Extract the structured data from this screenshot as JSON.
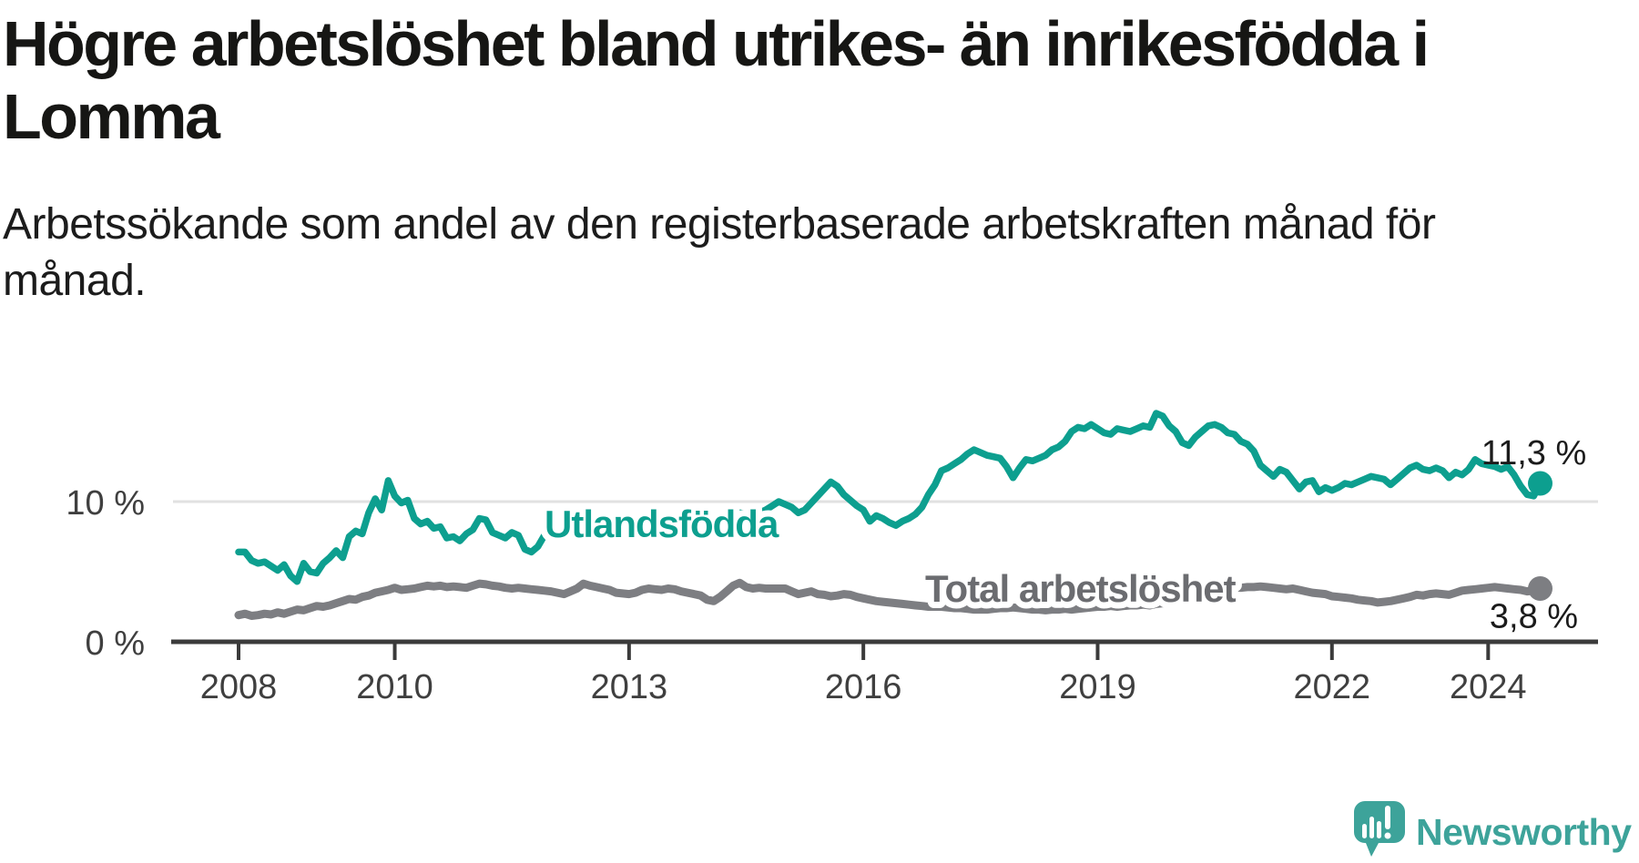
{
  "header": {
    "title_lines": [
      "Högre arbetslöshet bland utrikes- än inrikesfödda i",
      "Lomma"
    ],
    "subtitle_lines": [
      "Arbetssökande som andel av den registerbaserade arbetskraften månad för",
      "månad."
    ]
  },
  "branding": {
    "logo_text": "Newsworthy",
    "logo_icon": "newsworthy-speech-bubble-chart-icon",
    "logo_color": "#3da39a"
  },
  "colors": {
    "background": "#ffffff",
    "title_text": "#161614",
    "subtitle_text": "#1c1c1c",
    "axis_line": "#3b3b3b",
    "axis_label": "#3f3f3f",
    "gridline": "#e1e1e1",
    "value_label": "#1b1b1b",
    "series_foreign_born": "#0d9f8f",
    "series_total": "#7d7e82",
    "series_total_label": "#6b6c70",
    "label_halo": "#ffffff"
  },
  "chart_data": {
    "type": "line",
    "title": "Högre arbetslöshet bland utrikes- än inrikesfödda i Lomma",
    "subtitle": "Arbetssökande som andel av den registerbaserade arbetskraften månad för månad.",
    "unit": "%",
    "xlabel": "",
    "ylabel": "",
    "x_start_year": 2008,
    "x_start_month": 1,
    "x_frequency": "monthly",
    "x_end_year": 2024,
    "x_end_month": 9,
    "xlim": [
      2008,
      2024.75
    ],
    "ylim": [
      0,
      20
    ],
    "grid": "horizontal-10-only",
    "legend_position": "inline-labels",
    "x_ticks": [
      "2008",
      "2010",
      "2013",
      "2016",
      "2019",
      "2022",
      "2024"
    ],
    "y_ticks": [
      {
        "label": "0 %",
        "value": 0
      },
      {
        "label": "10 %",
        "value": 10
      }
    ],
    "series": [
      {
        "name": "Utlandsfödda",
        "color": "#0d9f8f",
        "end_label": "11,3 %",
        "end_value": 11.3,
        "values": [
          6.4,
          6.4,
          5.8,
          5.6,
          5.7,
          5.4,
          5.1,
          5.5,
          4.7,
          4.3,
          5.6,
          5.0,
          4.9,
          5.6,
          6.0,
          6.5,
          6.0,
          7.5,
          7.9,
          7.7,
          9.2,
          10.2,
          9.4,
          11.5,
          10.4,
          9.9,
          10.1,
          8.8,
          8.4,
          8.6,
          8.1,
          8.2,
          7.4,
          7.5,
          7.2,
          7.7,
          8.0,
          8.8,
          8.7,
          7.8,
          7.6,
          7.4,
          7.8,
          7.6,
          6.6,
          6.4,
          6.8,
          7.6,
          7.8,
          8.1,
          7.9,
          8.3,
          8.1,
          8.5,
          8.3,
          8.6,
          8.4,
          8.7,
          8.5,
          8.4,
          8.5,
          8.8,
          8.6,
          8.9,
          8.7,
          8.6,
          8.8,
          8.7,
          8.9,
          9.0,
          8.8,
          8.9,
          8.8,
          9.0,
          8.9,
          9.1,
          9.0,
          9.2,
          9.1,
          9.3,
          9.2,
          9.4,
          9.7,
          10.0,
          9.8,
          9.6,
          9.2,
          9.4,
          9.9,
          10.4,
          10.9,
          11.4,
          11.1,
          10.5,
          10.1,
          9.7,
          9.4,
          8.6,
          9.0,
          8.8,
          8.5,
          8.3,
          8.6,
          8.8,
          9.1,
          9.6,
          10.5,
          11.2,
          12.2,
          12.4,
          12.7,
          13.0,
          13.4,
          13.7,
          13.5,
          13.3,
          13.2,
          13.1,
          12.5,
          11.7,
          12.4,
          13.0,
          12.9,
          13.1,
          13.3,
          13.7,
          13.9,
          14.3,
          15.0,
          15.3,
          15.2,
          15.5,
          15.2,
          14.9,
          14.8,
          15.2,
          15.1,
          15.0,
          15.2,
          15.4,
          15.3,
          16.3,
          16.1,
          15.4,
          15.0,
          14.2,
          14.0,
          14.6,
          15.0,
          15.4,
          15.5,
          15.3,
          14.9,
          14.8,
          14.3,
          14.1,
          13.6,
          12.6,
          12.2,
          11.8,
          12.3,
          12.1,
          11.5,
          10.9,
          11.4,
          11.5,
          10.7,
          11.0,
          10.8,
          11.0,
          11.3,
          11.2,
          11.4,
          11.6,
          11.8,
          11.7,
          11.6,
          11.2,
          11.6,
          12.0,
          12.4,
          12.6,
          12.3,
          12.2,
          12.4,
          12.2,
          11.7,
          12.1,
          11.9,
          12.3,
          13.0,
          12.7,
          12.6,
          12.5,
          12.3,
          12.5,
          11.9,
          11.1,
          10.5,
          10.4,
          11.3
        ]
      },
      {
        "name": "Total arbetslöshet",
        "color": "#7d7e82",
        "end_label": "3,8 %",
        "end_value": 3.8,
        "values": [
          1.9,
          2.0,
          1.85,
          1.9,
          2.0,
          1.95,
          2.1,
          2.0,
          2.15,
          2.3,
          2.25,
          2.4,
          2.55,
          2.5,
          2.6,
          2.75,
          2.9,
          3.05,
          3.0,
          3.2,
          3.3,
          3.5,
          3.6,
          3.7,
          3.85,
          3.7,
          3.75,
          3.8,
          3.9,
          4.0,
          3.95,
          4.0,
          3.9,
          3.95,
          3.9,
          3.85,
          4.0,
          4.15,
          4.1,
          4.0,
          3.95,
          3.85,
          3.8,
          3.85,
          3.8,
          3.75,
          3.7,
          3.65,
          3.6,
          3.5,
          3.4,
          3.6,
          3.8,
          4.15,
          4.0,
          3.9,
          3.8,
          3.7,
          3.5,
          3.45,
          3.4,
          3.5,
          3.7,
          3.8,
          3.75,
          3.7,
          3.8,
          3.75,
          3.6,
          3.5,
          3.4,
          3.3,
          3.0,
          2.9,
          3.2,
          3.6,
          4.0,
          4.2,
          3.9,
          3.8,
          3.85,
          3.8,
          3.8,
          3.8,
          3.8,
          3.6,
          3.4,
          3.5,
          3.6,
          3.4,
          3.35,
          3.25,
          3.3,
          3.4,
          3.35,
          3.2,
          3.1,
          3.0,
          2.9,
          2.85,
          2.8,
          2.75,
          2.7,
          2.65,
          2.6,
          2.55,
          2.5,
          2.5,
          2.5,
          2.45,
          2.4,
          2.4,
          2.35,
          2.3,
          2.3,
          2.3,
          2.35,
          2.4,
          2.4,
          2.45,
          2.4,
          2.35,
          2.3,
          2.3,
          2.25,
          2.3,
          2.3,
          2.35,
          2.3,
          2.35,
          2.4,
          2.45,
          2.5,
          2.5,
          2.55,
          2.5,
          2.55,
          2.6,
          2.6,
          2.65,
          2.6,
          2.7,
          2.75,
          2.8,
          2.9,
          2.95,
          3.2,
          3.7,
          3.9,
          4.0,
          4.05,
          4.0,
          3.95,
          3.9,
          3.85,
          3.9,
          3.9,
          3.95,
          3.9,
          3.85,
          3.8,
          3.75,
          3.8,
          3.7,
          3.6,
          3.5,
          3.45,
          3.4,
          3.25,
          3.2,
          3.15,
          3.1,
          3.0,
          2.95,
          2.9,
          2.8,
          2.85,
          2.9,
          3.0,
          3.1,
          3.2,
          3.35,
          3.3,
          3.4,
          3.45,
          3.4,
          3.35,
          3.5,
          3.65,
          3.7,
          3.75,
          3.8,
          3.85,
          3.9,
          3.85,
          3.8,
          3.75,
          3.7,
          3.6,
          3.65,
          3.8
        ]
      }
    ]
  }
}
